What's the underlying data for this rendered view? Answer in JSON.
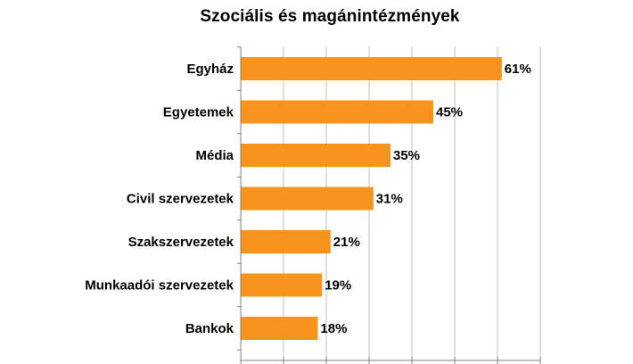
{
  "chart_data": {
    "type": "bar",
    "orientation": "horizontal",
    "title": "Szociális és magánintézmények",
    "categories": [
      "Egyház",
      "Egyetemek",
      "Média",
      "Civil szervezetek",
      "Szakszervezetek",
      "Munkaadói szervezetek",
      "Bankok"
    ],
    "values": [
      61,
      45,
      35,
      31,
      21,
      19,
      18
    ],
    "value_labels": [
      "61%",
      "45%",
      "35%",
      "31%",
      "21%",
      "19%",
      "18%"
    ],
    "xlim": [
      0,
      70
    ],
    "xlabel": "",
    "ylabel": "",
    "grid": "vertical",
    "legend": "none",
    "colors": {
      "bar": "#F7941E",
      "grid": "#BFBFBF",
      "axis": "#808080"
    }
  }
}
